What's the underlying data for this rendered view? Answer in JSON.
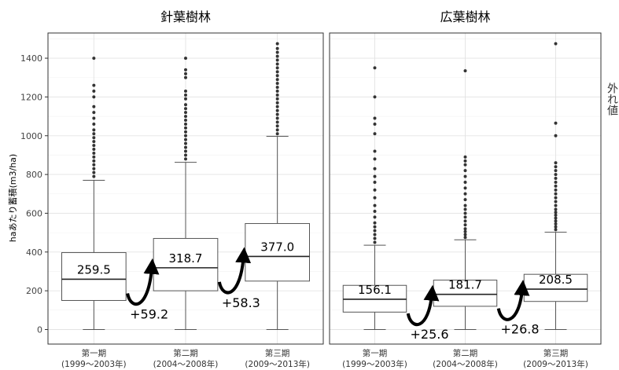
{
  "chart_data": {
    "type": "box",
    "ylabel": "haあたり蓄積(m3/ha)",
    "ylim": [
      0,
      1500
    ],
    "yticks": [
      0,
      200,
      400,
      600,
      800,
      1000,
      1200,
      1400
    ],
    "side_label": "外れ値",
    "categories": [
      {
        "line1": "第一期",
        "line2": "(1999〜2003年)"
      },
      {
        "line1": "第二期",
        "line2": "(2004〜2008年)"
      },
      {
        "line1": "第三期",
        "line2": "(2009〜2013年)"
      }
    ],
    "panels": [
      {
        "title": "針葉樹林",
        "boxes": [
          {
            "q1": 150,
            "median": 259.5,
            "q3": 397,
            "whisker_low": 0,
            "whisker_high": 770,
            "label": "259.5",
            "outliers": [
              790,
              810,
              830,
              850,
              870,
              890,
              910,
              930,
              950,
              970,
              990,
              1010,
              1030,
              1060,
              1090,
              1120,
              1150,
              1200,
              1230,
              1260,
              1400
            ]
          },
          {
            "q1": 200,
            "median": 318.7,
            "q3": 470,
            "whisker_low": 0,
            "whisker_high": 863,
            "label": "318.7",
            "outliers": [
              880,
              900,
              920,
              940,
              960,
              980,
              1000,
              1020,
              1040,
              1060,
              1080,
              1100,
              1120,
              1140,
              1160,
              1190,
              1210,
              1230,
              1300,
              1320,
              1340,
              1400
            ]
          },
          {
            "q1": 250,
            "median": 377.0,
            "q3": 547,
            "whisker_low": 0,
            "whisker_high": 997,
            "label": "377.0",
            "outliers": [
              1010,
              1030,
              1050,
              1070,
              1090,
              1110,
              1130,
              1150,
              1170,
              1190,
              1210,
              1230,
              1250,
              1270,
              1290,
              1310,
              1330,
              1350,
              1370,
              1390,
              1410,
              1430,
              1450,
              1475
            ]
          }
        ],
        "changes": [
          "+59.2",
          "+58.3"
        ]
      },
      {
        "title": "広葉樹林",
        "boxes": [
          {
            "q1": 90,
            "median": 156.1,
            "q3": 228,
            "whisker_low": 0,
            "whisker_high": 435,
            "label": "156.1",
            "outliers": [
              450,
              470,
              490,
              510,
              530,
              550,
              580,
              610,
              640,
              680,
              720,
              760,
              790,
              830,
              880,
              920,
              1010,
              1060,
              1090,
              1200,
              1350
            ]
          },
          {
            "q1": 120,
            "median": 181.7,
            "q3": 255,
            "whisker_low": 0,
            "whisker_high": 463,
            "label": "181.7",
            "outliers": [
              475,
              490,
              505,
              520,
              540,
              560,
              580,
              600,
              620,
              640,
              670,
              700,
              730,
              760,
              790,
              820,
              850,
              870,
              890,
              1335
            ]
          },
          {
            "q1": 145,
            "median": 208.5,
            "q3": 285,
            "whisker_low": 0,
            "whisker_high": 502,
            "label": "208.5",
            "outliers": [
              515,
              530,
              545,
              560,
              575,
              590,
              605,
              620,
              640,
              660,
              680,
              700,
              720,
              740,
              760,
              780,
              800,
              820,
              840,
              860,
              1000,
              1065,
              1475
            ]
          }
        ],
        "changes": [
          "+25.6",
          "+26.8"
        ]
      }
    ]
  }
}
